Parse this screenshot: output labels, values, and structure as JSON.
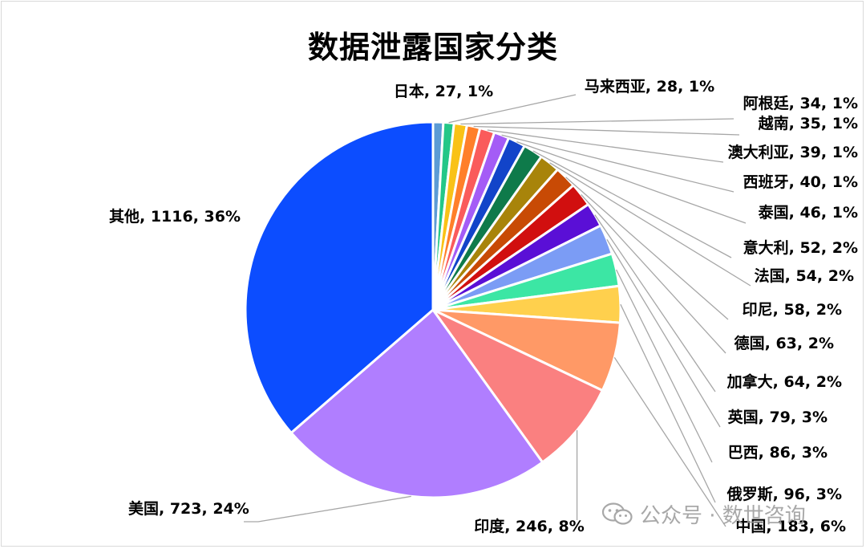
{
  "chart_data": {
    "type": "pie",
    "title": "数据泄露国家分类",
    "slices": [
      {
        "label": "日本",
        "value": 27,
        "percent": "1%",
        "color": "#5B9BD5"
      },
      {
        "label": "马来西亚",
        "value": 28,
        "percent": "1%",
        "color": "#24C788"
      },
      {
        "label": "阿根廷",
        "value": 34,
        "percent": "1%",
        "color": "#F9C217"
      },
      {
        "label": "越南",
        "value": 35,
        "percent": "1%",
        "color": "#FF7F2A"
      },
      {
        "label": "澳大利亚",
        "value": 39,
        "percent": "1%",
        "color": "#FA5B5B"
      },
      {
        "label": "西班牙",
        "value": 40,
        "percent": "1%",
        "color": "#A45CF6"
      },
      {
        "label": "泰国",
        "value": 46,
        "percent": "1%",
        "color": "#1244C9"
      },
      {
        "label": "意大利",
        "value": 52,
        "percent": "2%",
        "color": "#0E7A4A"
      },
      {
        "label": "法国",
        "value": 54,
        "percent": "2%",
        "color": "#A8840A"
      },
      {
        "label": "印尼",
        "value": 58,
        "percent": "2%",
        "color": "#C84A05"
      },
      {
        "label": "德国",
        "value": 63,
        "percent": "2%",
        "color": "#D10F0F"
      },
      {
        "label": "加拿大",
        "value": 64,
        "percent": "2%",
        "color": "#5A0FD6"
      },
      {
        "label": "英国",
        "value": 79,
        "percent": "3%",
        "color": "#7B9CF5"
      },
      {
        "label": "巴西",
        "value": 86,
        "percent": "3%",
        "color": "#3CE6A4"
      },
      {
        "label": "俄罗斯",
        "value": 96,
        "percent": "3%",
        "color": "#FFD04D"
      },
      {
        "label": "中国",
        "value": 183,
        "percent": "6%",
        "color": "#FF9966"
      },
      {
        "label": "印度",
        "value": 246,
        "percent": "8%",
        "color": "#FA8080"
      },
      {
        "label": "美国",
        "value": 723,
        "percent": "24%",
        "color": "#B07EFF"
      },
      {
        "label": "其他",
        "value": 1116,
        "percent": "36%",
        "color": "#0C4DFF"
      }
    ]
  },
  "watermark": {
    "text": "公众号 · 数世咨询",
    "icon": "wechat-icon"
  }
}
